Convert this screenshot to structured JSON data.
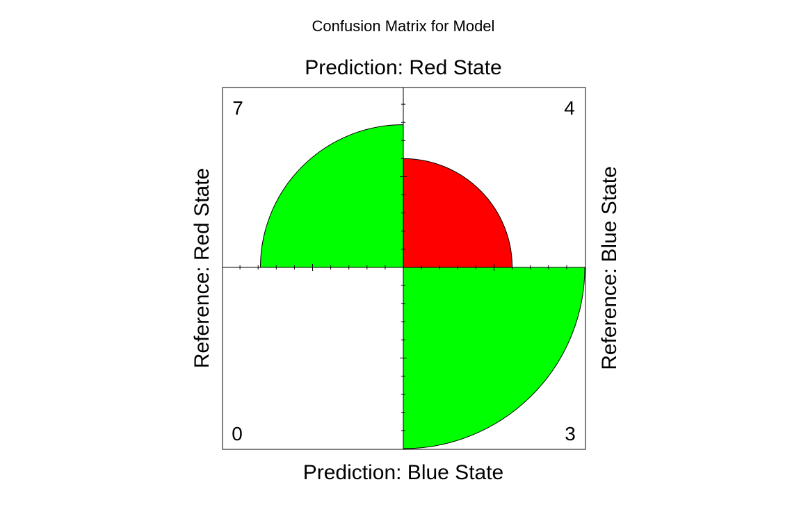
{
  "chart_data": {
    "type": "fourfold",
    "title": "Confusion Matrix for Model",
    "labels": {
      "top": "Prediction: Red State",
      "bottom": "Prediction: Blue State",
      "left": "Reference: Red State",
      "right": "Reference: Blue State"
    },
    "cells": [
      {
        "name": "top-left",
        "quadrant": "top-left",
        "count": "7",
        "value": 7,
        "area_fraction": 0.62,
        "color": "#00ff00"
      },
      {
        "name": "top-right",
        "quadrant": "top-right",
        "count": "4",
        "value": 4,
        "area_fraction": 0.36,
        "color": "#ff0000"
      },
      {
        "name": "bottom-left",
        "quadrant": "bottom-left",
        "count": "0",
        "value": 0,
        "area_fraction": 0.0,
        "color": "#00ff00"
      },
      {
        "name": "bottom-right",
        "quadrant": "bottom-right",
        "count": "3",
        "value": 3,
        "area_fraction": 1.0,
        "color": "#00ff00"
      }
    ],
    "axis_ticks": true
  }
}
